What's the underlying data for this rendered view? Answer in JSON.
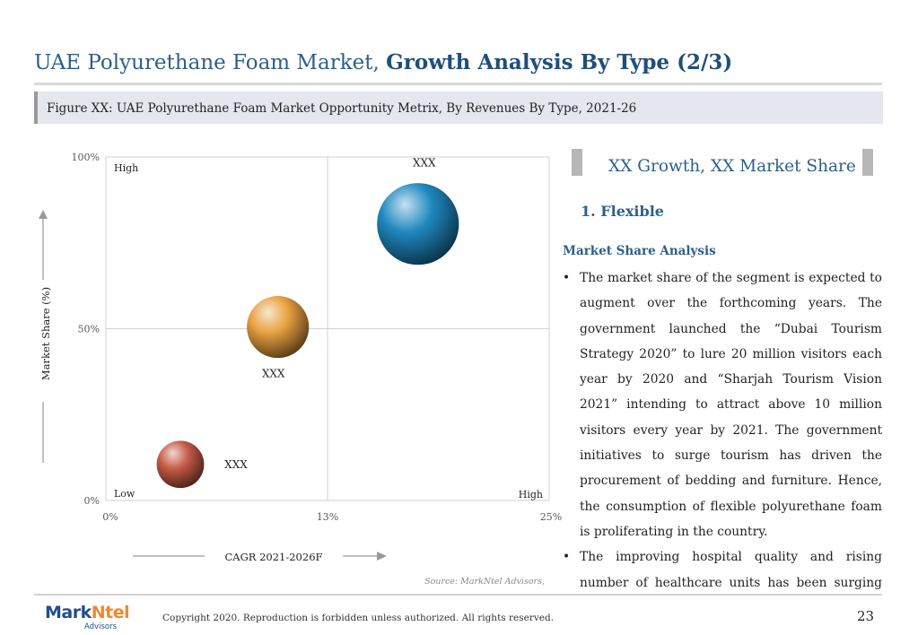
{
  "header": {
    "title_normal": "UAE Polyurethane Foam Market,",
    "title_bold": "Growth Analysis By Type (2/3)"
  },
  "figure": {
    "caption": "Figure XX: UAE Polyurethane Foam Market Opportunity Metrix, By Revenues By Type, 2021-26"
  },
  "chart_data": {
    "type": "scatter",
    "subtype": "bubble",
    "xlabel": "CAGR 2021-2026F",
    "ylabel": "Market Share (%)",
    "xlim": [
      0,
      25
    ],
    "ylim": [
      0,
      100
    ],
    "x_ticks": [
      "0%",
      "13%",
      "25%"
    ],
    "y_ticks": [
      "0%",
      "50%",
      "100%"
    ],
    "quadrant_labels": {
      "top_left": "High",
      "bottom_left": "Low",
      "bottom_right": "High"
    },
    "grid": true,
    "series": [
      {
        "label": "XXX",
        "x": 4.2,
        "y": 10.5,
        "size": 0.55,
        "color": "#c55a45"
      },
      {
        "label": "XXX",
        "x": 9.7,
        "y": 50.5,
        "size": 0.72,
        "color": "#e8a040"
      },
      {
        "label": "XXX",
        "x": 17.6,
        "y": 80.5,
        "size": 0.95,
        "color": "#1f88c0"
      }
    ],
    "source": "Source: MarkNtel Advisors,"
  },
  "panel": {
    "heading": "XX Growth, XX Market Share",
    "segment": "1. Flexible",
    "subheading": "Market Share Analysis",
    "bullet_symbol": "•",
    "bullets": [
      "The market share of the segment is expected to augment over the forthcoming years. The government launched the “Dubai Tourism Strategy 2020” to lure 20 million visitors each year by 2020 and “Sharjah Tourism Vision 2021” intending to attract above 10 million visitors every year by 2021. The government initiatives to surge tourism has driven the procurement of bedding and furniture. Hence, the consumption of flexible polyurethane foam is proliferating in the country.",
      "The improving hospital quality and rising number of healthcare units has been surging the sales of"
    ]
  },
  "footer": {
    "logo_main": "Mark",
    "logo_accent": "Ntel",
    "logo_sub": "Advisors",
    "copyright": "Copyright 2020. Reproduction is forbidden unless authorized. All rights reserved.",
    "page_number": "23"
  }
}
